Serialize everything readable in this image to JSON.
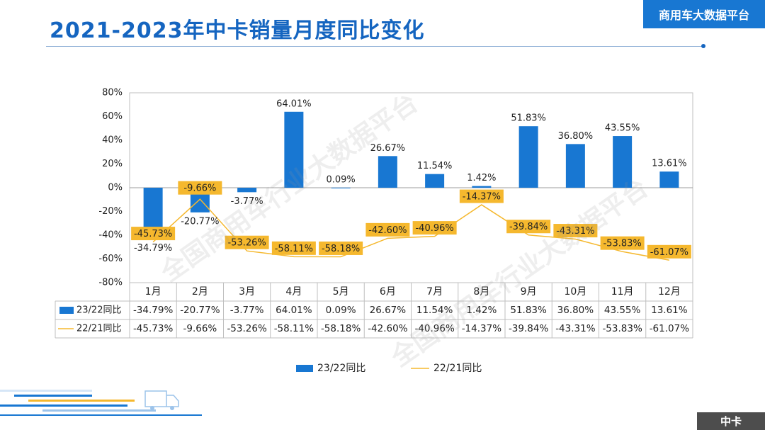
{
  "header": {
    "title": "2021-2023年中卡销量月度同比变化",
    "brand": "商用车大数据平台"
  },
  "footer": {
    "corner_label": "中卡"
  },
  "watermark": "全国商用车行业大数据平台",
  "colors": {
    "bar": "#1877d2",
    "line": "#f5b82e",
    "label_bg": "#f5b82e",
    "title": "#1565c0",
    "grid": "#d9d9d9"
  },
  "chart_data": {
    "type": "bar",
    "categories": [
      "1月",
      "2月",
      "3月",
      "4月",
      "5月",
      "6月",
      "7月",
      "8月",
      "9月",
      "10月",
      "11月",
      "12月"
    ],
    "ylim": [
      -80,
      80
    ],
    "yticks": [
      "80%",
      "60%",
      "40%",
      "20%",
      "0%",
      "-20%",
      "-40%",
      "-60%",
      "-80%"
    ],
    "series": [
      {
        "name": "23/22同比",
        "type": "bar",
        "values": [
          -34.79,
          -20.77,
          -3.77,
          64.01,
          0.09,
          26.67,
          11.54,
          1.42,
          51.83,
          36.8,
          43.55,
          13.61
        ],
        "labels": [
          "-34.79%",
          "-20.77%",
          "-3.77%",
          "64.01%",
          "0.09%",
          "26.67%",
          "11.54%",
          "1.42%",
          "51.83%",
          "36.80%",
          "43.55%",
          "13.61%"
        ]
      },
      {
        "name": "22/21同比",
        "type": "line",
        "values": [
          -45.73,
          -9.66,
          -53.26,
          -58.11,
          -58.18,
          -42.6,
          -40.96,
          -14.37,
          -39.84,
          -43.31,
          -53.83,
          -61.07
        ],
        "labels": [
          "-45.73%",
          "-9.66%",
          "-53.26%",
          "-58.11%",
          "-58.18%",
          "-42.60%",
          "-40.96%",
          "-14.37%",
          "-39.84%",
          "-43.31%",
          "-53.83%",
          "-61.07%"
        ]
      }
    ],
    "data_table": true,
    "legend": "bottom-center"
  }
}
